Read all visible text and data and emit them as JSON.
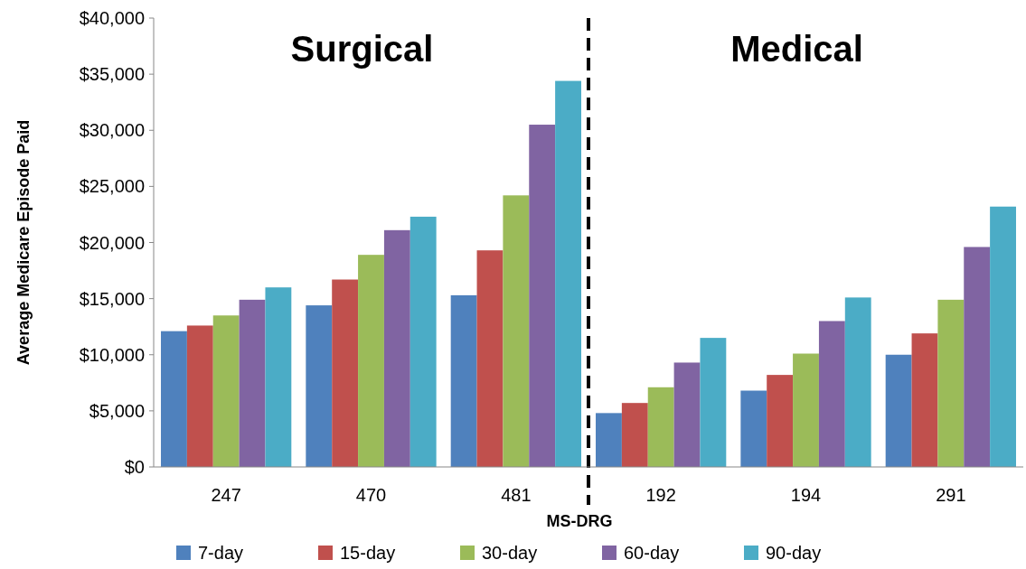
{
  "chart_data": {
    "type": "bar",
    "xlabel": "MS-DRG",
    "ylabel": "Average Medicare Episode Paid",
    "categories": [
      "247",
      "470",
      "481",
      "192",
      "194",
      "291"
    ],
    "series": [
      {
        "name": "7-day",
        "color": "#4f81bd",
        "values": [
          12100,
          14400,
          15300,
          4800,
          6800,
          10000
        ]
      },
      {
        "name": "15-day",
        "color": "#c0504d",
        "values": [
          12600,
          16700,
          19300,
          5700,
          8200,
          11900
        ]
      },
      {
        "name": "30-day",
        "color": "#9bbb59",
        "values": [
          13500,
          18900,
          24200,
          7100,
          10100,
          14900
        ]
      },
      {
        "name": "60-day",
        "color": "#8064a2",
        "values": [
          14900,
          21100,
          30500,
          9300,
          13000,
          19600
        ]
      },
      {
        "name": "90-day",
        "color": "#4bacc6",
        "values": [
          16000,
          22300,
          34400,
          11500,
          15100,
          23200
        ]
      }
    ],
    "ylim": [
      0,
      40000
    ],
    "yticks": [
      {
        "value": 0,
        "label": "$0"
      },
      {
        "value": 5000,
        "label": "$5,000"
      },
      {
        "value": 10000,
        "label": "$10,000"
      },
      {
        "value": 15000,
        "label": "$15,000"
      },
      {
        "value": 20000,
        "label": "$20,000"
      },
      {
        "value": 25000,
        "label": "$25,000"
      },
      {
        "value": 30000,
        "label": "$30,000"
      },
      {
        "value": 35000,
        "label": "$35,000"
      },
      {
        "value": 40000,
        "label": "$40,000"
      }
    ],
    "annotations": [
      "Surgical",
      "Medical"
    ],
    "grid": false,
    "legend": "bottom"
  }
}
